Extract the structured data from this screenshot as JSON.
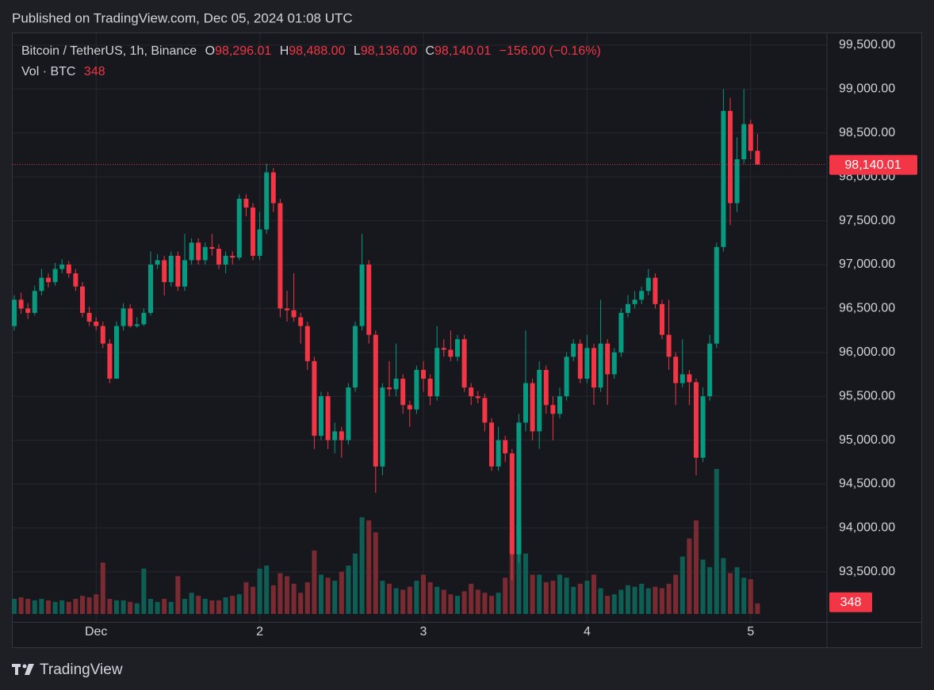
{
  "published": "Published on TradingView.com, Dec 05, 2024 01:08 UTC",
  "brand": "TradingView",
  "chart_data": {
    "type": "candlestick",
    "legend": {
      "symbol": "Bitcoin / TetherUS, 1h, Binance",
      "fields": [
        {
          "key": "O",
          "value": "98,296.01"
        },
        {
          "key": "H",
          "value": "98,488.00"
        },
        {
          "key": "L",
          "value": "98,136.00"
        },
        {
          "key": "C",
          "value": "98,140.01"
        }
      ],
      "change": "−156.00 (−0.16%)"
    },
    "volume_legend": {
      "name": "Vol · BTC",
      "value": "348"
    },
    "up_color": "#089981",
    "down_color": "#f23645",
    "up_volume_color": "#0f5e55",
    "down_volume_color": "#7a2b32",
    "grid": true,
    "ylim": [
      92930,
      99635
    ],
    "yticks": [
      {
        "value": 93500,
        "label": "93,500.00"
      },
      {
        "value": 94000,
        "label": "94,000.00"
      },
      {
        "value": 94500,
        "label": "94,500.00"
      },
      {
        "value": 95000,
        "label": "95,000.00"
      },
      {
        "value": 95500,
        "label": "95,500.00"
      },
      {
        "value": 96000,
        "label": "96,000.00"
      },
      {
        "value": 96500,
        "label": "96,500.00"
      },
      {
        "value": 97000,
        "label": "97,000.00"
      },
      {
        "value": 97500,
        "label": "97,500.00"
      },
      {
        "value": 98000,
        "label": "98,000.00"
      },
      {
        "value": 98500,
        "label": "98,500.00"
      },
      {
        "value": 99000,
        "label": "99,000.00"
      },
      {
        "value": 99500,
        "label": "99,500.00"
      }
    ],
    "categories": [
      null,
      null,
      null,
      null,
      null,
      null,
      null,
      null,
      null,
      null,
      null,
      null,
      "Dec",
      null,
      null,
      null,
      null,
      null,
      null,
      null,
      null,
      null,
      null,
      null,
      null,
      null,
      null,
      null,
      null,
      null,
      null,
      null,
      null,
      null,
      null,
      null,
      "2",
      null,
      null,
      null,
      null,
      null,
      null,
      null,
      null,
      null,
      null,
      null,
      null,
      null,
      null,
      null,
      null,
      null,
      null,
      null,
      null,
      null,
      null,
      null,
      "3",
      null,
      null,
      null,
      null,
      null,
      null,
      null,
      null,
      null,
      null,
      null,
      null,
      null,
      null,
      null,
      null,
      null,
      null,
      null,
      null,
      null,
      null,
      null,
      "4",
      null,
      null,
      null,
      null,
      null,
      null,
      null,
      null,
      null,
      null,
      null,
      null,
      null,
      null,
      null,
      null,
      null,
      null,
      null,
      null,
      null,
      null,
      null,
      "5",
      null
    ],
    "open": [
      96300,
      96600,
      96500,
      96450,
      96700,
      96850,
      96800,
      96950,
      97000,
      96900,
      96750,
      96450,
      96350,
      96300,
      96100,
      95700,
      96300,
      96500,
      96300,
      96320,
      96450,
      97000,
      97050,
      96800,
      97100,
      96750,
      97050,
      97250,
      97050,
      97200,
      97180,
      97000,
      97100,
      97080,
      97750,
      97650,
      97100,
      97400,
      98050,
      97700,
      96500,
      96480,
      96400,
      96300,
      95900,
      95050,
      95500,
      95000,
      95100,
      95000,
      95600,
      96300,
      97000,
      96200,
      94700,
      95600,
      95580,
      95700,
      95400,
      95350,
      95800,
      95700,
      95500,
      96050,
      96030,
      95950,
      96150,
      95600,
      95500,
      95480,
      95200,
      94700,
      95000,
      94850,
      93700,
      95200,
      95650,
      95100,
      95800,
      95400,
      95300,
      95500,
      95950,
      96100,
      95700,
      96050,
      95600,
      96100,
      95750,
      96000,
      96450,
      96550,
      96600,
      96700,
      96850,
      96550,
      96200,
      95950,
      95650,
      95750,
      95660,
      94800,
      95500,
      96100,
      97200,
      98750,
      97700,
      98200,
      98600,
      98296.01
    ],
    "high": [
      96650,
      96680,
      96560,
      96760,
      96950,
      96900,
      97020,
      97060,
      97040,
      96950,
      96800,
      96520,
      96400,
      96350,
      96150,
      96350,
      96560,
      96550,
      96400,
      96500,
      97150,
      97120,
      97100,
      97150,
      97150,
      97350,
      97300,
      97300,
      97250,
      97350,
      97230,
      97150,
      97150,
      97800,
      97800,
      97700,
      97600,
      98150,
      98100,
      97750,
      96700,
      96900,
      96450,
      96350,
      95950,
      95550,
      95550,
      95200,
      95150,
      95650,
      96350,
      97350,
      97050,
      96250,
      95650,
      95900,
      96100,
      95750,
      95450,
      95850,
      95900,
      95750,
      96300,
      96150,
      96250,
      96200,
      96200,
      95650,
      95560,
      95530,
      95250,
      95150,
      95050,
      94900,
      95300,
      96250,
      95700,
      95900,
      95850,
      95500,
      95600,
      96000,
      96150,
      96150,
      96200,
      96100,
      96600,
      96150,
      96050,
      96500,
      96650,
      96700,
      96750,
      96950,
      96900,
      96600,
      96600,
      96000,
      96150,
      95800,
      95700,
      95600,
      96200,
      97250,
      99000,
      98900,
      98450,
      99000,
      98650,
      98488
    ],
    "low": [
      96250,
      96440,
      96380,
      96420,
      96650,
      96740,
      96760,
      96900,
      96850,
      96700,
      96400,
      96300,
      96250,
      96050,
      95650,
      95700,
      96250,
      96280,
      96280,
      96300,
      96420,
      96950,
      96650,
      96750,
      96700,
      96700,
      97000,
      97000,
      97000,
      97100,
      96950,
      96900,
      97000,
      97050,
      97550,
      97050,
      97050,
      97350,
      97600,
      96400,
      96350,
      96350,
      96100,
      95800,
      94900,
      95000,
      94900,
      94850,
      94800,
      94950,
      95550,
      96250,
      96100,
      94400,
      94600,
      95500,
      95500,
      95300,
      95150,
      95300,
      95550,
      95400,
      95450,
      95950,
      95900,
      95900,
      95550,
      95400,
      95420,
      95100,
      94650,
      94650,
      94750,
      93400,
      93600,
      95100,
      95000,
      94900,
      95300,
      95000,
      95250,
      95450,
      95900,
      95650,
      95650,
      95400,
      95550,
      95400,
      95700,
      95950,
      96400,
      96500,
      96550,
      96650,
      96500,
      96150,
      95800,
      95400,
      95600,
      95400,
      94600,
      94750,
      95450,
      96050,
      97150,
      97450,
      97600,
      98150,
      98200,
      98136
    ],
    "close": [
      96600,
      96500,
      96450,
      96700,
      96850,
      96800,
      96950,
      97000,
      96900,
      96750,
      96450,
      96350,
      96300,
      96100,
      95700,
      96300,
      96500,
      96300,
      96320,
      96450,
      97000,
      97050,
      96800,
      97100,
      96750,
      97050,
      97250,
      97050,
      97200,
      97180,
      97000,
      97100,
      97080,
      97750,
      97650,
      97100,
      97400,
      98050,
      97700,
      96500,
      96480,
      96400,
      96300,
      95900,
      95050,
      95500,
      95000,
      95100,
      95000,
      95600,
      96300,
      97000,
      96200,
      94700,
      95600,
      95580,
      95700,
      95400,
      95350,
      95800,
      95700,
      95500,
      96050,
      96030,
      95950,
      96150,
      95600,
      95500,
      95480,
      95200,
      94700,
      95000,
      94850,
      93700,
      95200,
      95650,
      95100,
      95800,
      95400,
      95300,
      95500,
      95950,
      96100,
      95700,
      96050,
      95600,
      96100,
      95750,
      96000,
      96450,
      96550,
      96600,
      96700,
      96850,
      96550,
      96200,
      95950,
      95650,
      95750,
      95660,
      94800,
      95500,
      96100,
      97200,
      98750,
      97700,
      98200,
      98600,
      98296.01,
      98140.01
    ],
    "volume": [
      500,
      550,
      500,
      450,
      500,
      450,
      400,
      450,
      400,
      500,
      600,
      550,
      650,
      1700,
      500,
      450,
      450,
      400,
      350,
      1500,
      500,
      400,
      500,
      400,
      1250,
      500,
      700,
      600,
      500,
      450,
      450,
      550,
      600,
      650,
      1050,
      900,
      1500,
      1600,
      950,
      1350,
      1250,
      1000,
      700,
      1050,
      2100,
      1300,
      1200,
      1100,
      1400,
      1600,
      2000,
      3200,
      3100,
      2700,
      1100,
      1000,
      850,
      800,
      900,
      1100,
      1300,
      1050,
      900,
      800,
      650,
      600,
      750,
      1000,
      800,
      700,
      600,
      700,
      1200,
      2700,
      3100,
      2000,
      1300,
      1300,
      1050,
      1100,
      1300,
      1200,
      900,
      1000,
      1100,
      1300,
      850,
      600,
      650,
      800,
      950,
      900,
      1000,
      850,
      900,
      850,
      1000,
      1300,
      1900,
      2500,
      3100,
      1800,
      1550,
      4800,
      1850,
      1350,
      1550,
      1200,
      1150,
      348
    ]
  }
}
